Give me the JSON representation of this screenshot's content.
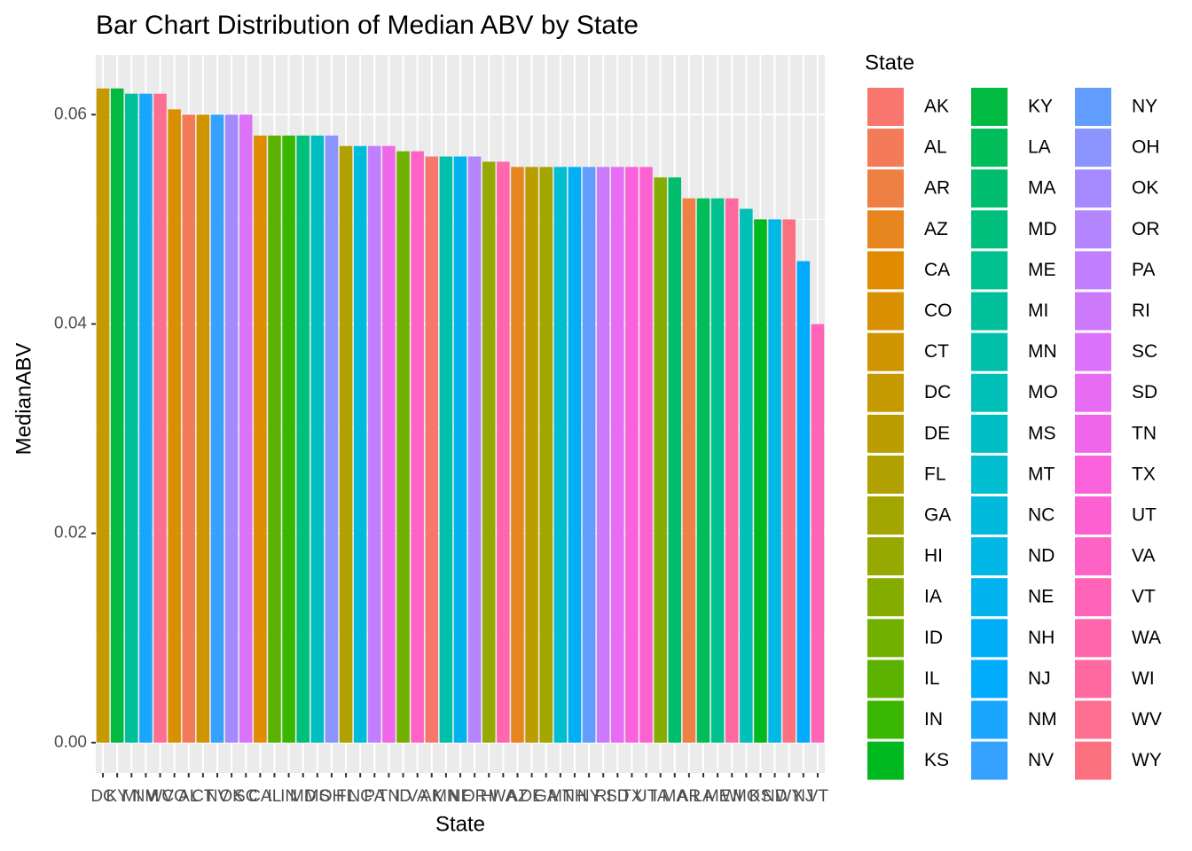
{
  "chart_data": {
    "type": "bar",
    "title": "Bar Chart Distribution of Median ABV by State",
    "xlabel": "State",
    "ylabel": "MedianABV",
    "categories": [
      "DC",
      "KY",
      "MI",
      "NM",
      "WV",
      "CO",
      "AL",
      "CT",
      "NV",
      "OK",
      "SC",
      "CA",
      "IL",
      "IN",
      "MD",
      "MS",
      "OH",
      "FL",
      "NC",
      "PA",
      "TN",
      "ID",
      "VA",
      "AK",
      "MN",
      "NE",
      "OR",
      "HI",
      "WA",
      "AZ",
      "DE",
      "GA",
      "MT",
      "NH",
      "NY",
      "RI",
      "SD",
      "TX",
      "UT",
      "IA",
      "MA",
      "AR",
      "LA",
      "ME",
      "WI",
      "MO",
      "KS",
      "ND",
      "WY",
      "NJ",
      "VT"
    ],
    "values": [
      0.0625,
      0.0625,
      0.062,
      0.062,
      0.062,
      0.0605,
      0.06,
      0.06,
      0.06,
      0.06,
      0.06,
      0.058,
      0.058,
      0.058,
      0.058,
      0.058,
      0.058,
      0.057,
      0.057,
      0.057,
      0.057,
      0.0565,
      0.0565,
      0.056,
      0.056,
      0.056,
      0.056,
      0.0555,
      0.0555,
      0.055,
      0.055,
      0.055,
      0.055,
      0.055,
      0.055,
      0.055,
      0.055,
      0.055,
      0.055,
      0.054,
      0.054,
      0.052,
      0.052,
      0.052,
      0.052,
      0.051,
      0.05,
      0.05,
      0.05,
      0.046,
      0.04
    ],
    "ylim": [
      -0.0029,
      0.0657
    ],
    "yticks": [
      {
        "value": 0,
        "label": "0.00"
      },
      0.02,
      0.04,
      0.06
    ],
    "grid": true,
    "legend": {
      "title": "State",
      "names": [
        "AK",
        "AL",
        "AR",
        "AZ",
        "CA",
        "CO",
        "CT",
        "DC",
        "DE",
        "FL",
        "GA",
        "HI",
        "IA",
        "ID",
        "IL",
        "IN",
        "KS",
        "KY",
        "LA",
        "MA",
        "MD",
        "ME",
        "MI",
        "MN",
        "MO",
        "MS",
        "MT",
        "NC",
        "ND",
        "NE",
        "NH",
        "NJ",
        "NM",
        "NV",
        "NY",
        "OH",
        "OK",
        "OR",
        "PA",
        "RI",
        "SC",
        "SD",
        "TN",
        "TX",
        "UT",
        "VA",
        "VT",
        "WA",
        "WI",
        "WV",
        "WY"
      ],
      "colors": [
        "#F8766D",
        "#F37B59",
        "#EE8043",
        "#E7851E",
        "#E08B00",
        "#D89000",
        "#CF9400",
        "#C59900",
        "#BB9D00",
        "#B0A100",
        "#A3A500",
        "#95A900",
        "#85AD00",
        "#72B000",
        "#5BB300",
        "#39B600",
        "#00B81F",
        "#00BA42",
        "#00BC59",
        "#00BD6D",
        "#00BF7D",
        "#00C08D",
        "#00C09C",
        "#00C0AA",
        "#00C0B7",
        "#00BFC4",
        "#00BDD0",
        "#00BADB",
        "#00B7E5",
        "#00B3EF",
        "#00AEF8",
        "#00ABFD",
        "#1AA5FF",
        "#35A2FF",
        "#619CFF",
        "#8B93FF",
        "#A58AFF",
        "#B385FF",
        "#C17FFF",
        "#CD79FB",
        "#DC71FA",
        "#E76BF3",
        "#F066EA",
        "#FA62DB",
        "#FD61D1",
        "#FF62C5",
        "#FF64B9",
        "#FF66AC",
        "#FF69A0",
        "#FE6E91",
        "#FC717F"
      ]
    }
  }
}
